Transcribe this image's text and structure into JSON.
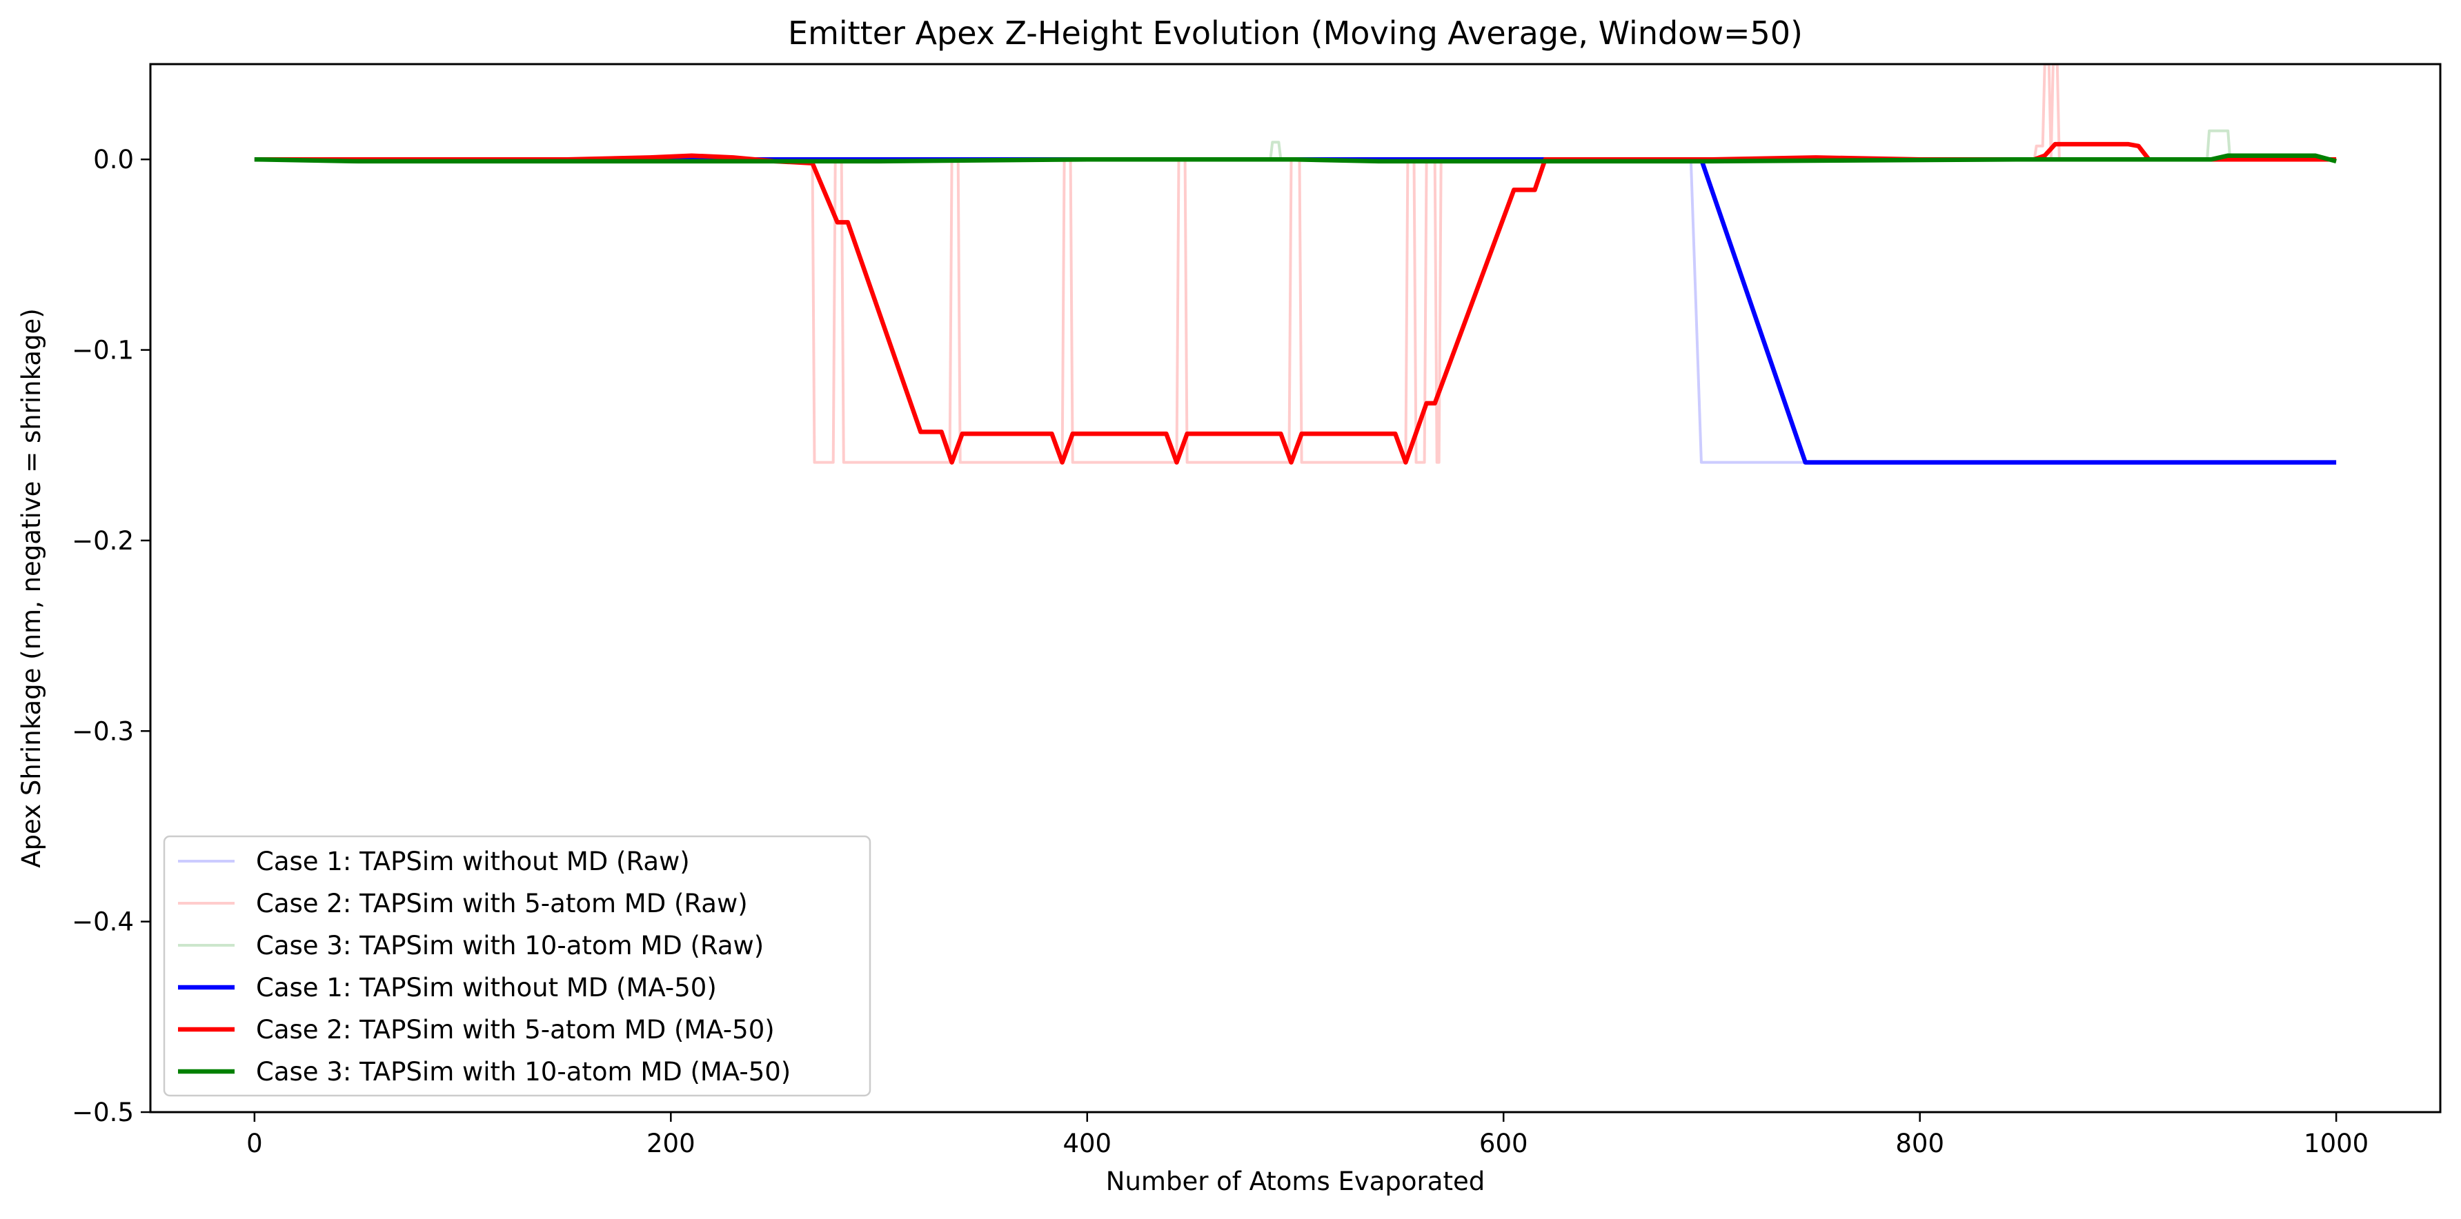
{
  "chart_data": {
    "type": "line",
    "title": "Emitter Apex Z-Height Evolution (Moving Average, Window=50)",
    "xlabel": "Number of Atoms Evaporated",
    "ylabel": "Apex Shrinkage (nm, negative = shrinkage)",
    "xlim": [
      -50,
      1050
    ],
    "ylim": [
      -0.5,
      0.05
    ],
    "xticks": [
      0,
      200,
      400,
      600,
      800,
      1000
    ],
    "xtick_labels": [
      "0",
      "200",
      "400",
      "600",
      "800",
      "1000"
    ],
    "yticks": [
      0.0,
      -0.1,
      -0.2,
      -0.3,
      -0.4,
      -0.5
    ],
    "ytick_labels": [
      "0.0",
      "−0.1",
      "−0.2",
      "−0.3",
      "−0.4",
      "−0.5"
    ],
    "grid": false,
    "legend_position": "lower-left",
    "series": [
      {
        "name": "Case 1: TAPSim without MD (Raw)",
        "color": "#0000ff",
        "opacity": 0.2,
        "width": "thin",
        "points": [
          [
            0,
            0.0
          ],
          [
            690,
            0.0
          ],
          [
            695,
            -0.159
          ],
          [
            1000,
            -0.159
          ]
        ]
      },
      {
        "name": "Case 2: TAPSim with 5-atom MD (Raw)",
        "color": "#ff0000",
        "opacity": 0.2,
        "width": "thin",
        "points": [
          [
            0,
            0.0
          ],
          [
            268,
            0.0
          ],
          [
            269,
            -0.159
          ],
          [
            278,
            -0.159
          ],
          [
            279,
            0.0
          ],
          [
            282,
            0.0
          ],
          [
            283,
            -0.159
          ],
          [
            285,
            -0.159
          ],
          [
            286,
            -0.159
          ],
          [
            334,
            -0.159
          ],
          [
            335,
            0.0
          ],
          [
            338,
            0.0
          ],
          [
            339,
            -0.159
          ],
          [
            388,
            -0.159
          ],
          [
            389,
            0.0
          ],
          [
            392,
            0.0
          ],
          [
            393,
            -0.159
          ],
          [
            443,
            -0.159
          ],
          [
            444,
            0.0
          ],
          [
            447,
            0.0
          ],
          [
            448,
            -0.159
          ],
          [
            497,
            -0.159
          ],
          [
            498,
            0.0
          ],
          [
            502,
            0.0
          ],
          [
            503,
            -0.159
          ],
          [
            553,
            -0.159
          ],
          [
            554,
            0.0
          ],
          [
            557,
            0.0
          ],
          [
            558,
            -0.159
          ],
          [
            562,
            -0.159
          ],
          [
            563,
            0.0
          ],
          [
            567,
            0.0
          ],
          [
            568,
            -0.159
          ],
          [
            569,
            -0.159
          ],
          [
            570,
            0.0
          ],
          [
            855,
            0.0
          ],
          [
            856,
            0.007
          ],
          [
            859,
            0.007
          ],
          [
            860,
            0.05
          ],
          [
            862,
            0.05
          ],
          [
            863,
            0.0
          ],
          [
            864,
            0.05
          ],
          [
            866,
            0.05
          ],
          [
            867,
            0.0
          ],
          [
            1000,
            0.0
          ]
        ]
      },
      {
        "name": "Case 3: TAPSim with 10-atom MD (Raw)",
        "color": "#008000",
        "opacity": 0.2,
        "width": "thin",
        "points": [
          [
            0,
            0.0
          ],
          [
            488,
            0.0
          ],
          [
            489,
            0.009
          ],
          [
            492,
            0.009
          ],
          [
            493,
            0.0
          ],
          [
            938,
            0.0
          ],
          [
            939,
            0.015
          ],
          [
            948,
            0.015
          ],
          [
            949,
            0.0
          ],
          [
            1000,
            0.0
          ]
        ]
      },
      {
        "name": "Case 1: TAPSim without MD (MA-50)",
        "color": "#0000ff",
        "opacity": 1.0,
        "width": "thick",
        "points": [
          [
            0,
            0.0
          ],
          [
            695,
            0.0
          ],
          [
            745,
            -0.159
          ],
          [
            1000,
            -0.159
          ]
        ]
      },
      {
        "name": "Case 2: TAPSim with 5-atom MD (MA-50)",
        "color": "#ff0000",
        "opacity": 1.0,
        "width": "thick",
        "points": [
          [
            0,
            0.0
          ],
          [
            100,
            0.0
          ],
          [
            150,
            0.0
          ],
          [
            190,
            0.001
          ],
          [
            210,
            0.002
          ],
          [
            230,
            0.001
          ],
          [
            250,
            -0.001
          ],
          [
            268,
            -0.002
          ],
          [
            280,
            -0.033
          ],
          [
            285,
            -0.033
          ],
          [
            320,
            -0.143
          ],
          [
            330,
            -0.143
          ],
          [
            335,
            -0.159
          ],
          [
            340,
            -0.144
          ],
          [
            383,
            -0.144
          ],
          [
            388,
            -0.159
          ],
          [
            393,
            -0.144
          ],
          [
            438,
            -0.144
          ],
          [
            443,
            -0.159
          ],
          [
            448,
            -0.144
          ],
          [
            493,
            -0.144
          ],
          [
            498,
            -0.159
          ],
          [
            503,
            -0.144
          ],
          [
            548,
            -0.144
          ],
          [
            553,
            -0.159
          ],
          [
            563,
            -0.128
          ],
          [
            567,
            -0.128
          ],
          [
            605,
            -0.016
          ],
          [
            615,
            -0.016
          ],
          [
            620,
            0.0
          ],
          [
            700,
            0.0
          ],
          [
            750,
            0.001
          ],
          [
            800,
            0.0
          ],
          [
            855,
            0.0
          ],
          [
            860,
            0.002
          ],
          [
            865,
            0.008
          ],
          [
            900,
            0.008
          ],
          [
            905,
            0.007
          ],
          [
            910,
            0.0
          ],
          [
            1000,
            0.0
          ]
        ]
      },
      {
        "name": "Case 3: TAPSim with 10-atom MD (MA-50)",
        "color": "#008000",
        "opacity": 1.0,
        "width": "thick",
        "points": [
          [
            0,
            0.0
          ],
          [
            50,
            -0.001
          ],
          [
            200,
            -0.001
          ],
          [
            300,
            -0.001
          ],
          [
            400,
            0.0
          ],
          [
            500,
            0.0
          ],
          [
            540,
            -0.001
          ],
          [
            700,
            -0.001
          ],
          [
            850,
            0.0
          ],
          [
            900,
            0.0
          ],
          [
            940,
            0.0
          ],
          [
            948,
            0.002
          ],
          [
            990,
            0.002
          ],
          [
            1000,
            -0.001
          ]
        ]
      }
    ]
  }
}
